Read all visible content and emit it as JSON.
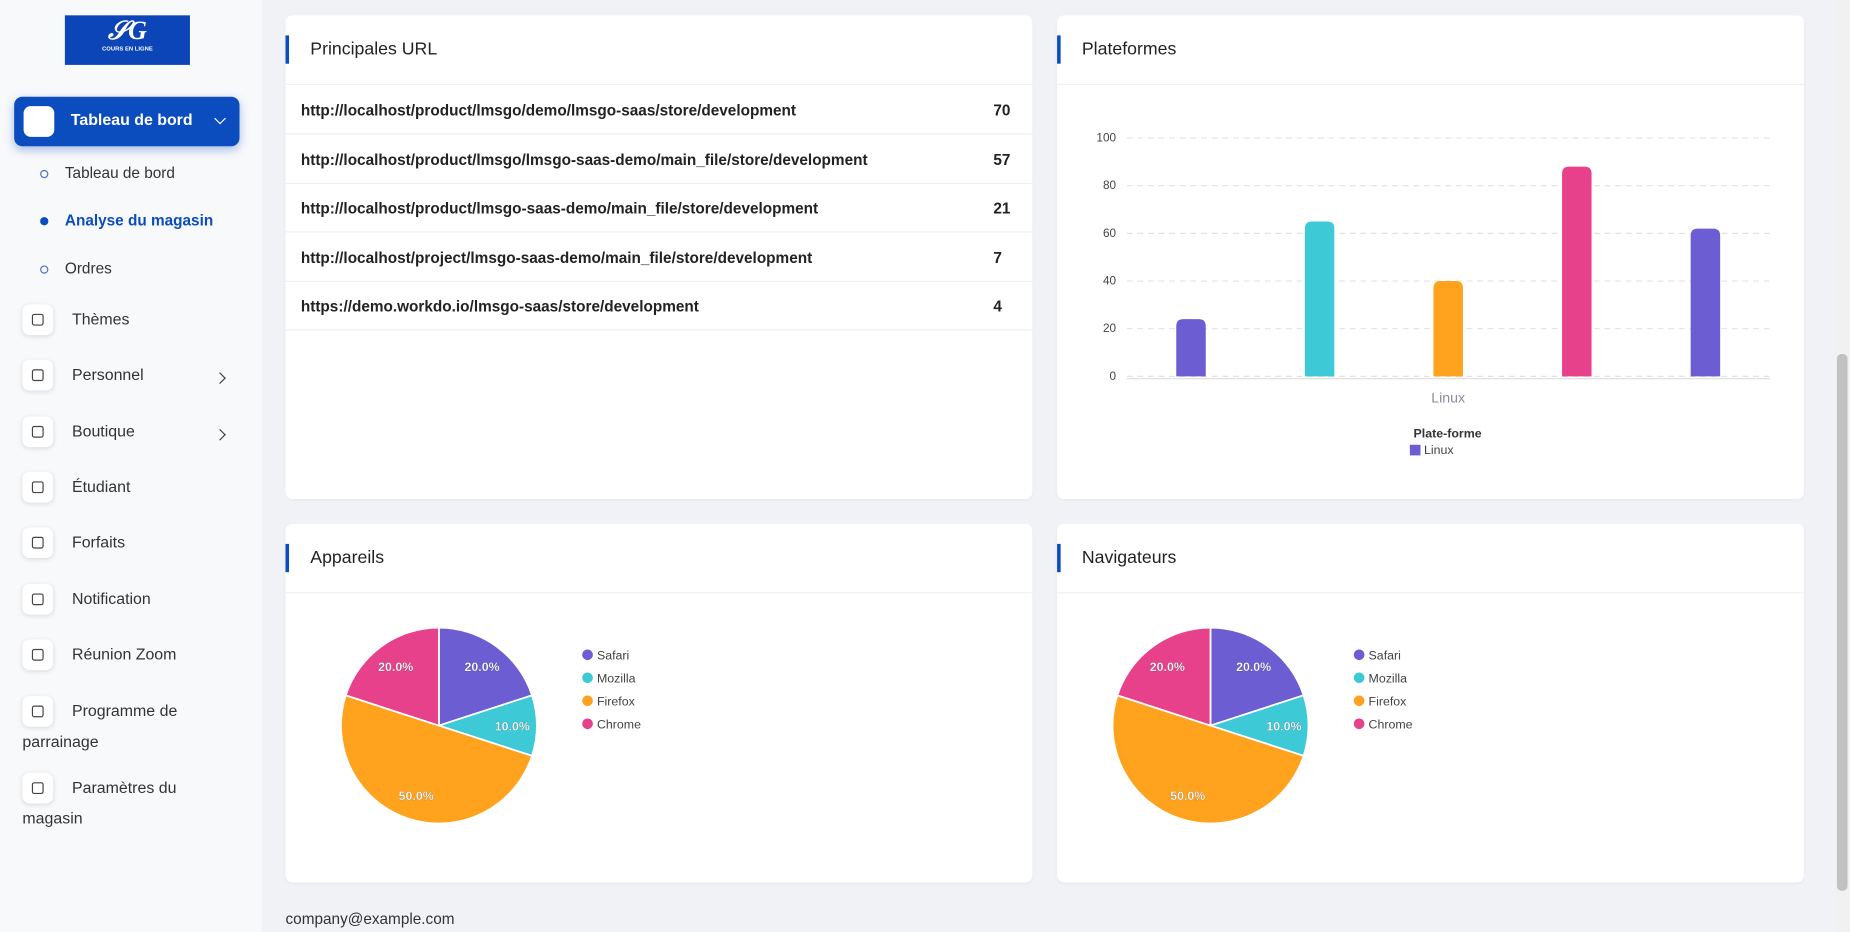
{
  "logo": "COURS EN LIGNE",
  "sidebar": {
    "active": "Tableau de bord",
    "sub": [
      "Tableau de bord",
      "Analyse du magasin",
      "Ordres"
    ],
    "items": [
      "Thèmes",
      "Personnel",
      "Boutique",
      "Étudiant",
      "Forfaits",
      "Notification",
      "Réunion Zoom",
      "Programme de parrainage",
      "Paramètres du magasin"
    ]
  },
  "urls": {
    "title": "Principales URL",
    "rows": [
      {
        "url": "http://localhost/product/lmsgo/demo/lmsgo-saas/store/development",
        "count": 70
      },
      {
        "url": "http://localhost/product/lmsgo/lmsgo-saas-demo/main_file/store/development",
        "count": 57
      },
      {
        "url": "http://localhost/product/lmsgo-saas-demo/main_file/store/development",
        "count": 21
      },
      {
        "url": "http://localhost/project/lmsgo-saas-demo/main_file/store/development",
        "count": 7
      },
      {
        "url": "https://demo.workdo.io/lmsgo-saas/store/development",
        "count": 4
      }
    ]
  },
  "footer": "company@example.com",
  "chart_data": [
    {
      "type": "bar",
      "title": "Plateformes",
      "categories": [
        null,
        null,
        "Linux",
        null,
        null
      ],
      "series": [
        {
          "name": "Linux",
          "color": [
            "#6c5dd3",
            "#3ec9d6",
            "#ffa21d",
            "#e8418c",
            "#6c5dd3"
          ],
          "values": [
            24,
            65,
            40,
            88,
            62
          ]
        }
      ],
      "legend_title": "Plate-forme",
      "ylim": [
        0,
        100
      ],
      "yticks": [
        0,
        20,
        40,
        60,
        80,
        100
      ],
      "grid": true
    },
    {
      "type": "pie",
      "title": "Appareils",
      "categories": [
        "Safari",
        "Mozilla",
        "Firefox",
        "Chrome"
      ],
      "values": [
        20,
        10,
        50,
        20
      ],
      "value_labels": [
        "20.0%",
        "10.0%",
        "50.0%",
        "20.0%"
      ],
      "colors": [
        "#6c5dd3",
        "#3ec9d6",
        "#ffa21d",
        "#e8418c"
      ],
      "legend": "right"
    },
    {
      "type": "pie",
      "title": "Navigateurs",
      "categories": [
        "Safari",
        "Mozilla",
        "Firefox",
        "Chrome"
      ],
      "values": [
        20,
        10,
        50,
        20
      ],
      "value_labels": [
        "20.0%",
        "10.0%",
        "50.0%",
        "20.0%"
      ],
      "colors": [
        "#6c5dd3",
        "#3ec9d6",
        "#ffa21d",
        "#e8418c"
      ],
      "legend": "right"
    }
  ]
}
